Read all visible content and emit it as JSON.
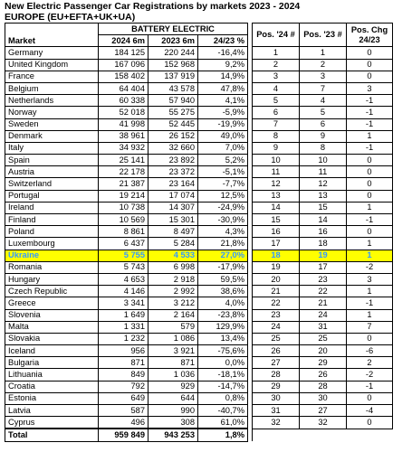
{
  "title": "New Electric Passenger Car Registrations by markets 2023 - 2024",
  "subtitle": "EUROPE (EU+EFTA+UK+UA)",
  "headers": {
    "market": "Market",
    "group": "BATTERY ELECTRIC",
    "y2024": "2024 6m",
    "y2023": "2023 6m",
    "pct": "24/23 %",
    "pos24": "Pos. '24 #",
    "pos23": "Pos. '23 #",
    "chg_line1": "Pos. Chg",
    "chg_line2": "24/23"
  },
  "rows": [
    {
      "market": "Germany",
      "v2024": "184 125",
      "v2023": "220 244",
      "pct": "-16,4%",
      "pos24": "1",
      "pos23": "1",
      "chg": "0"
    },
    {
      "market": "United Kingdom",
      "v2024": "167 096",
      "v2023": "152 968",
      "pct": "9,2%",
      "pos24": "2",
      "pos23": "2",
      "chg": "0"
    },
    {
      "market": "France",
      "v2024": "158 402",
      "v2023": "137 919",
      "pct": "14,9%",
      "pos24": "3",
      "pos23": "3",
      "chg": "0"
    },
    {
      "market": "Belgium",
      "v2024": "64 404",
      "v2023": "43 578",
      "pct": "47,8%",
      "pos24": "4",
      "pos23": "7",
      "chg": "3"
    },
    {
      "market": "Netherlands",
      "v2024": "60 338",
      "v2023": "57 940",
      "pct": "4,1%",
      "pos24": "5",
      "pos23": "4",
      "chg": "-1"
    },
    {
      "market": "Norway",
      "v2024": "52 018",
      "v2023": "55 275",
      "pct": "-5,9%",
      "pos24": "6",
      "pos23": "5",
      "chg": "-1"
    },
    {
      "market": "Sweden",
      "v2024": "41 998",
      "v2023": "52 445",
      "pct": "-19,9%",
      "pos24": "7",
      "pos23": "6",
      "chg": "-1"
    },
    {
      "market": "Denmark",
      "v2024": "38 961",
      "v2023": "26 152",
      "pct": "49,0%",
      "pos24": "8",
      "pos23": "9",
      "chg": "1"
    },
    {
      "market": "Italy",
      "v2024": "34 932",
      "v2023": "32 660",
      "pct": "7,0%",
      "pos24": "9",
      "pos23": "8",
      "chg": "-1"
    },
    {
      "market": "Spain",
      "v2024": "25 141",
      "v2023": "23 892",
      "pct": "5,2%",
      "pos24": "10",
      "pos23": "10",
      "chg": "0"
    },
    {
      "market": "Austria",
      "v2024": "22 178",
      "v2023": "23 372",
      "pct": "-5,1%",
      "pos24": "11",
      "pos23": "11",
      "chg": "0"
    },
    {
      "market": "Switzerland",
      "v2024": "21 387",
      "v2023": "23 164",
      "pct": "-7,7%",
      "pos24": "12",
      "pos23": "12",
      "chg": "0"
    },
    {
      "market": "Portugal",
      "v2024": "19 214",
      "v2023": "17 074",
      "pct": "12,5%",
      "pos24": "13",
      "pos23": "13",
      "chg": "0"
    },
    {
      "market": "Ireland",
      "v2024": "10 738",
      "v2023": "14 307",
      "pct": "-24,9%",
      "pos24": "14",
      "pos23": "15",
      "chg": "1"
    },
    {
      "market": "Finland",
      "v2024": "10 569",
      "v2023": "15 301",
      "pct": "-30,9%",
      "pos24": "15",
      "pos23": "14",
      "chg": "-1"
    },
    {
      "market": "Poland",
      "v2024": "8 861",
      "v2023": "8 497",
      "pct": "4,3%",
      "pos24": "16",
      "pos23": "16",
      "chg": "0"
    },
    {
      "market": "Luxembourg",
      "v2024": "6 437",
      "v2023": "5 284",
      "pct": "21,8%",
      "pos24": "17",
      "pos23": "18",
      "chg": "1"
    },
    {
      "market": "Ukraine",
      "v2024": "5 755",
      "v2023": "4 533",
      "pct": "27,0%",
      "pos24": "18",
      "pos23": "19",
      "chg": "1",
      "highlight": true
    },
    {
      "market": "Romania",
      "v2024": "5 743",
      "v2023": "6 998",
      "pct": "-17,9%",
      "pos24": "19",
      "pos23": "17",
      "chg": "-2"
    },
    {
      "market": "Hungary",
      "v2024": "4 653",
      "v2023": "2 918",
      "pct": "59,5%",
      "pos24": "20",
      "pos23": "23",
      "chg": "3"
    },
    {
      "market": "Czech Republic",
      "v2024": "4 146",
      "v2023": "2 992",
      "pct": "38,6%",
      "pos24": "21",
      "pos23": "22",
      "chg": "1"
    },
    {
      "market": "Greece",
      "v2024": "3 341",
      "v2023": "3 212",
      "pct": "4,0%",
      "pos24": "22",
      "pos23": "21",
      "chg": "-1"
    },
    {
      "market": "Slovenia",
      "v2024": "1 649",
      "v2023": "2 164",
      "pct": "-23,8%",
      "pos24": "23",
      "pos23": "24",
      "chg": "1"
    },
    {
      "market": "Malta",
      "v2024": "1 331",
      "v2023": "579",
      "pct": "129,9%",
      "pos24": "24",
      "pos23": "31",
      "chg": "7"
    },
    {
      "market": "Slovakia",
      "v2024": "1 232",
      "v2023": "1 086",
      "pct": "13,4%",
      "pos24": "25",
      "pos23": "25",
      "chg": "0"
    },
    {
      "market": "Iceland",
      "v2024": "956",
      "v2023": "3 921",
      "pct": "-75,6%",
      "pos24": "26",
      "pos23": "20",
      "chg": "-6"
    },
    {
      "market": "Bulgaria",
      "v2024": "871",
      "v2023": "871",
      "pct": "0,0%",
      "pos24": "27",
      "pos23": "29",
      "chg": "2"
    },
    {
      "market": "Lithuania",
      "v2024": "849",
      "v2023": "1 036",
      "pct": "-18,1%",
      "pos24": "28",
      "pos23": "26",
      "chg": "-2"
    },
    {
      "market": "Croatia",
      "v2024": "792",
      "v2023": "929",
      "pct": "-14,7%",
      "pos24": "29",
      "pos23": "28",
      "chg": "-1"
    },
    {
      "market": "Estonia",
      "v2024": "649",
      "v2023": "644",
      "pct": "0,8%",
      "pos24": "30",
      "pos23": "30",
      "chg": "0"
    },
    {
      "market": "Latvia",
      "v2024": "587",
      "v2023": "990",
      "pct": "-40,7%",
      "pos24": "31",
      "pos23": "27",
      "chg": "-4"
    },
    {
      "market": "Cyprus",
      "v2024": "496",
      "v2023": "308",
      "pct": "61,0%",
      "pos24": "32",
      "pos23": "32",
      "chg": "0"
    }
  ],
  "total": {
    "market": "Total",
    "v2024": "959 849",
    "v2023": "943 253",
    "pct": "1,8%"
  },
  "colors": {
    "highlight_bg": "#ffff00",
    "highlight_text": "#3399ff"
  }
}
